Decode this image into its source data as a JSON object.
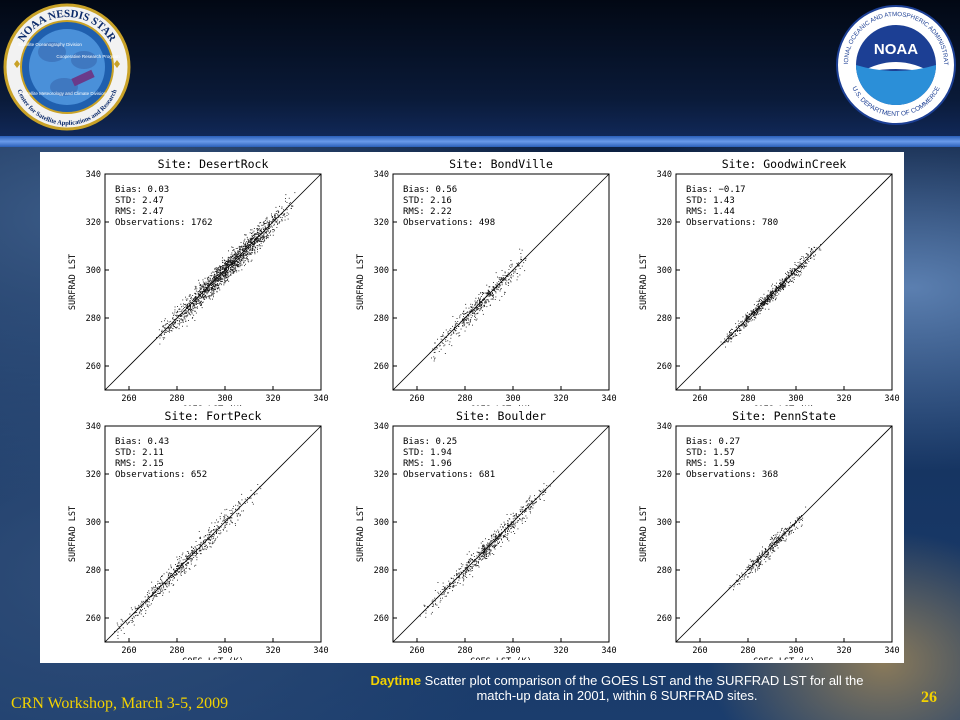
{
  "header": {
    "left_logo": {
      "ring_text": "NOAA NESDIS STAR",
      "side_text": "Center for Satellite Applications and Research",
      "divisions": [
        "Satellite Oceanography Division",
        "Cooperative Research Program",
        "Satellite Meteorology and Climate Division"
      ]
    },
    "right_logo": {
      "ring_text": "NATIONAL OCEANIC AND ATMOSPHERIC ADMINISTRATION",
      "bottom_text": "U.S. DEPARTMENT OF COMMERCE",
      "center_text": "NOAA"
    }
  },
  "chart_data": [
    {
      "type": "scatter",
      "title": "Site: DesertRock",
      "xlabel": "GOES LST (K)",
      "ylabel": "SURFRAD LST",
      "xlim": [
        250,
        340
      ],
      "ylim": [
        250,
        340
      ],
      "xticks": [
        260,
        280,
        300,
        320,
        340
      ],
      "yticks": [
        260,
        280,
        300,
        320,
        340
      ],
      "stats": [
        "Bias: 0.03",
        "STD: 2.47",
        "RMS: 2.47",
        "Observations: 1762"
      ],
      "reference_line": "1:1",
      "cloud": {
        "range": [
          272,
          328
        ],
        "spread": 2.47,
        "n": 1762
      }
    },
    {
      "type": "scatter",
      "title": "Site: BondVille",
      "xlabel": "GOES LST (K)",
      "ylabel": "SURFRAD LST",
      "xlim": [
        250,
        340
      ],
      "ylim": [
        250,
        340
      ],
      "xticks": [
        260,
        280,
        300,
        320,
        340
      ],
      "yticks": [
        260,
        280,
        300,
        320,
        340
      ],
      "stats": [
        "Bias: 0.56",
        "STD: 2.16",
        "RMS: 2.22",
        "Observations: 498"
      ],
      "reference_line": "1:1",
      "cloud": {
        "range": [
          266,
          306
        ],
        "spread": 2.16,
        "n": 498
      }
    },
    {
      "type": "scatter",
      "title": "Site: GoodwinCreek",
      "xlabel": "GOES LST (K)",
      "ylabel": "SURFRAD LST",
      "xlim": [
        250,
        340
      ],
      "ylim": [
        250,
        340
      ],
      "xticks": [
        260,
        280,
        300,
        320,
        340
      ],
      "yticks": [
        260,
        280,
        300,
        320,
        340
      ],
      "stats": [
        "Bias: −0.17",
        "STD: 1.43",
        "RMS: 1.44",
        "Observations: 780"
      ],
      "reference_line": "1:1",
      "cloud": {
        "range": [
          268,
          310
        ],
        "spread": 1.43,
        "n": 780
      }
    },
    {
      "type": "scatter",
      "title": "Site: FortPeck",
      "xlabel": "GOES LST (K)",
      "ylabel": "SURFRAD LST",
      "xlim": [
        250,
        340
      ],
      "ylim": [
        250,
        340
      ],
      "xticks": [
        260,
        280,
        300,
        320,
        340
      ],
      "yticks": [
        260,
        280,
        300,
        320,
        340
      ],
      "stats": [
        "Bias: 0.43",
        "STD: 2.11",
        "RMS: 2.15",
        "Observations: 652"
      ],
      "reference_line": "1:1",
      "cloud": {
        "range": [
          252,
          314
        ],
        "spread": 2.11,
        "n": 652
      }
    },
    {
      "type": "scatter",
      "title": "Site: Boulder",
      "xlabel": "GOES LST (K)",
      "ylabel": "SURFRAD LST",
      "xlim": [
        250,
        340
      ],
      "ylim": [
        250,
        340
      ],
      "xticks": [
        260,
        280,
        300,
        320,
        340
      ],
      "yticks": [
        260,
        280,
        300,
        320,
        340
      ],
      "stats": [
        "Bias: 0.25",
        "STD: 1.94",
        "RMS: 1.96",
        "Observations: 681"
      ],
      "reference_line": "1:1",
      "cloud": {
        "range": [
          262,
          316
        ],
        "spread": 1.94,
        "n": 681
      }
    },
    {
      "type": "scatter",
      "title": "Site: PennState",
      "xlabel": "GOES LST (K)",
      "ylabel": "SURFRAD LST",
      "xlim": [
        250,
        340
      ],
      "ylim": [
        250,
        340
      ],
      "xticks": [
        260,
        280,
        300,
        320,
        340
      ],
      "yticks": [
        260,
        280,
        300,
        320,
        340
      ],
      "stats": [
        "Bias: 0.27",
        "STD: 1.57",
        "RMS: 1.59",
        "Observations: 368"
      ],
      "reference_line": "1:1",
      "cloud": {
        "range": [
          272,
          304
        ],
        "spread": 1.57,
        "n": 368
      }
    }
  ],
  "caption": {
    "emphasis": "Daytime",
    "text": " Scatter plot comparison of the GOES LST and the SURFRAD LST for all the match-up data in 2001, within 6 SURFRAD sites."
  },
  "footer": {
    "left": "CRN Workshop, March 3-5, 2009",
    "page": "26"
  },
  "colors": {
    "accent_yellow": "#f3d200",
    "header_bar": "#4a7fd6"
  }
}
